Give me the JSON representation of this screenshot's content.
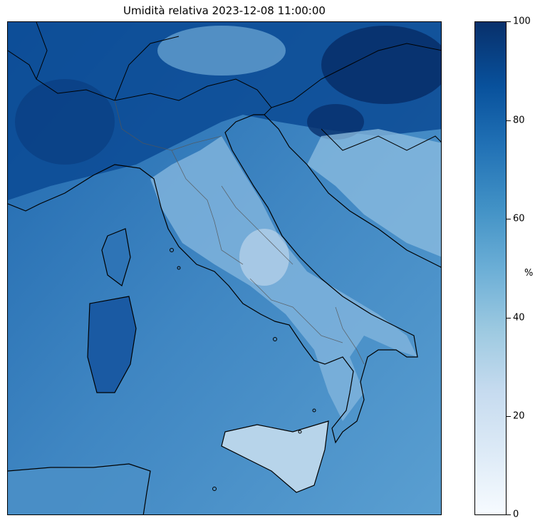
{
  "title": "Umidità relativa 2023-12-08 11:00:00",
  "colorbar": {
    "unit": "%",
    "colormap": "Blues",
    "range": [
      0,
      100
    ],
    "ticks": [
      "0",
      "20",
      "40",
      "60",
      "80",
      "100"
    ]
  },
  "colors": {
    "sea": "#3f86c2",
    "high_humidity": "#08306b",
    "low_humidity": "#f7fbff",
    "coastline": "#000000",
    "region_border": "#555555"
  }
}
